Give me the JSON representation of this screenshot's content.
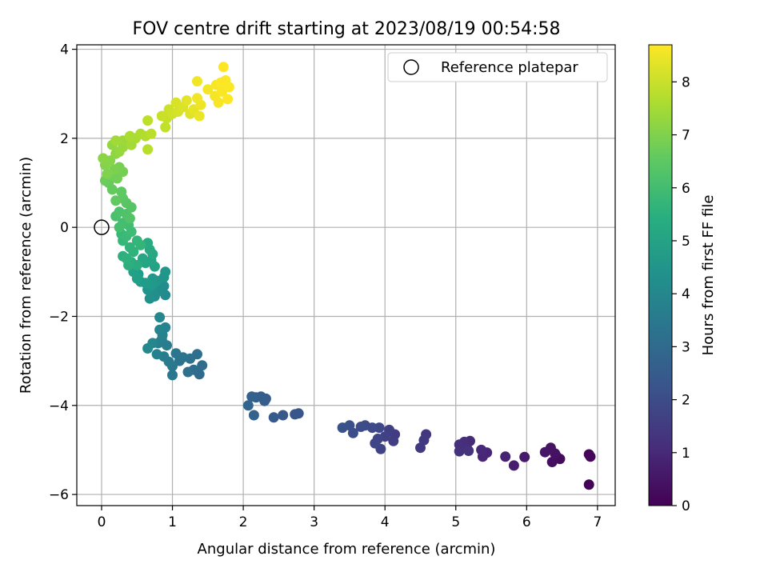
{
  "chart_data": {
    "type": "scatter",
    "title": "FOV centre drift starting at 2023/08/19 00:54:58",
    "xlabel": "Angular distance from reference (arcmin)",
    "ylabel": "Rotation from reference (arcmin)",
    "xlim": [
      -0.35,
      7.25
    ],
    "ylim": [
      -6.25,
      4.1
    ],
    "xticks": [
      0,
      1,
      2,
      3,
      4,
      5,
      6,
      7
    ],
    "yticks": [
      -6,
      -4,
      -2,
      0,
      2,
      4
    ],
    "xtick_labels": [
      "0",
      "1",
      "2",
      "3",
      "4",
      "5",
      "6",
      "7"
    ],
    "ytick_labels": [
      "−6",
      "−4",
      "−2",
      "0",
      "2",
      "4"
    ],
    "grid": true,
    "legend": {
      "placement": "top-right",
      "entries": [
        "Reference platepar"
      ]
    },
    "colorbar": {
      "label": "Hours from first FF file",
      "min": 0,
      "max": 8.7,
      "ticks": [
        0,
        1,
        2,
        3,
        4,
        5,
        6,
        7,
        8
      ],
      "tick_labels": [
        "0",
        "1",
        "2",
        "3",
        "4",
        "5",
        "6",
        "7",
        "8"
      ],
      "colormap": "viridis"
    },
    "reference_point": {
      "x": 0,
      "y": 0,
      "label": "Reference platepar"
    },
    "series": [
      {
        "points": [
          [
            6.88,
            -5.78,
            0.05
          ],
          [
            6.88,
            -5.1,
            0.1
          ],
          [
            6.9,
            -5.15,
            0.15
          ],
          [
            6.47,
            -5.2,
            0.25
          ],
          [
            6.42,
            -5.14,
            0.3
          ],
          [
            6.36,
            -5.27,
            0.35
          ],
          [
            6.4,
            -5.08,
            0.4
          ],
          [
            6.34,
            -4.95,
            0.45
          ],
          [
            6.26,
            -5.05,
            0.5
          ],
          [
            5.97,
            -5.16,
            0.6
          ],
          [
            5.82,
            -5.35,
            0.7
          ],
          [
            5.7,
            -5.15,
            0.8
          ],
          [
            5.44,
            -5.06,
            0.9
          ],
          [
            5.38,
            -5.15,
            0.95
          ],
          [
            5.36,
            -5.0,
            1.0
          ],
          [
            5.2,
            -4.8,
            1.05
          ],
          [
            5.16,
            -4.97,
            1.1
          ],
          [
            5.12,
            -4.82,
            1.15
          ],
          [
            5.05,
            -4.88,
            1.2
          ],
          [
            5.05,
            -5.03,
            1.25
          ],
          [
            5.18,
            -5.02,
            1.3
          ],
          [
            4.58,
            -4.65,
            1.4
          ],
          [
            4.55,
            -4.78,
            1.45
          ],
          [
            4.5,
            -4.95,
            1.5
          ],
          [
            4.14,
            -4.65,
            1.55
          ],
          [
            4.12,
            -4.8,
            1.6
          ],
          [
            4.06,
            -4.55,
            1.65
          ],
          [
            4.0,
            -4.7,
            1.7
          ],
          [
            3.94,
            -4.98,
            1.75
          ],
          [
            3.9,
            -4.75,
            1.8
          ],
          [
            3.86,
            -4.85,
            1.85
          ],
          [
            3.92,
            -4.5,
            1.9
          ],
          [
            3.82,
            -4.5,
            1.95
          ],
          [
            3.72,
            -4.45,
            2.0
          ],
          [
            3.66,
            -4.48,
            2.05
          ],
          [
            3.55,
            -4.62,
            2.1
          ],
          [
            3.5,
            -4.45,
            2.15
          ],
          [
            3.4,
            -4.5,
            2.2
          ],
          [
            2.78,
            -4.18,
            2.3
          ],
          [
            2.73,
            -4.2,
            2.35
          ],
          [
            2.56,
            -4.22,
            2.4
          ],
          [
            2.43,
            -4.27,
            2.45
          ],
          [
            2.32,
            -3.85,
            2.5
          ],
          [
            2.3,
            -3.9,
            2.55
          ],
          [
            2.25,
            -3.8,
            2.6
          ],
          [
            2.18,
            -3.82,
            2.65
          ],
          [
            2.12,
            -3.8,
            2.7
          ],
          [
            2.15,
            -4.22,
            2.75
          ],
          [
            2.07,
            -4.0,
            2.8
          ],
          [
            1.38,
            -3.3,
            3.0
          ],
          [
            1.42,
            -3.1,
            3.05
          ],
          [
            1.3,
            -3.2,
            3.1
          ],
          [
            1.35,
            -2.85,
            3.15
          ],
          [
            1.22,
            -3.25,
            3.2
          ],
          [
            1.25,
            -2.95,
            3.25
          ],
          [
            1.15,
            -2.92,
            3.3
          ],
          [
            1.1,
            -3.0,
            3.35
          ],
          [
            1.05,
            -2.83,
            3.4
          ],
          [
            1.0,
            -3.12,
            3.45
          ],
          [
            1.0,
            -3.32,
            3.5
          ],
          [
            0.95,
            -3.02,
            3.55
          ],
          [
            0.92,
            -2.65,
            3.6
          ],
          [
            0.88,
            -2.9,
            3.65
          ],
          [
            0.85,
            -2.52,
            3.7
          ],
          [
            0.8,
            -2.6,
            3.75
          ],
          [
            0.78,
            -2.85,
            3.8
          ],
          [
            0.9,
            -2.25,
            3.85
          ],
          [
            0.86,
            -2.42,
            3.9
          ],
          [
            0.82,
            -2.3,
            3.95
          ],
          [
            0.82,
            -2.02,
            4.0
          ],
          [
            0.72,
            -2.6,
            4.05
          ],
          [
            0.65,
            -2.72,
            4.1
          ],
          [
            0.9,
            -1.52,
            4.15
          ],
          [
            0.88,
            -1.32,
            4.2
          ],
          [
            0.82,
            -1.42,
            4.25
          ],
          [
            0.75,
            -1.55,
            4.3
          ],
          [
            0.72,
            -1.35,
            4.35
          ],
          [
            0.68,
            -1.6,
            4.4
          ],
          [
            0.65,
            -1.4,
            4.45
          ],
          [
            0.88,
            -1.12,
            4.5
          ],
          [
            0.9,
            -1.0,
            4.55
          ],
          [
            0.78,
            -1.2,
            4.6
          ],
          [
            0.72,
            -1.15,
            4.65
          ],
          [
            0.7,
            -1.3,
            4.7
          ],
          [
            0.62,
            -1.25,
            4.75
          ],
          [
            0.55,
            -1.22,
            4.8
          ],
          [
            0.52,
            -1.05,
            4.85
          ],
          [
            0.5,
            -1.15,
            4.9
          ],
          [
            0.45,
            -1.0,
            4.95
          ],
          [
            0.75,
            -0.88,
            5.0
          ],
          [
            0.7,
            -0.75,
            5.05
          ],
          [
            0.62,
            -0.8,
            5.1
          ],
          [
            0.58,
            -0.7,
            5.15
          ],
          [
            0.72,
            -0.6,
            5.2
          ],
          [
            0.68,
            -0.5,
            5.25
          ],
          [
            0.65,
            -0.35,
            5.3
          ],
          [
            0.5,
            -0.85,
            5.35
          ],
          [
            0.42,
            -0.78,
            5.4
          ],
          [
            0.38,
            -0.85,
            5.45
          ],
          [
            0.3,
            -0.65,
            5.5
          ],
          [
            0.35,
            -0.7,
            5.55
          ],
          [
            0.45,
            -0.55,
            5.6
          ],
          [
            0.4,
            -0.45,
            5.65
          ],
          [
            0.55,
            -0.4,
            5.7
          ],
          [
            0.5,
            -0.3,
            5.75
          ],
          [
            0.3,
            -0.3,
            5.8
          ],
          [
            0.28,
            -0.15,
            5.85
          ],
          [
            0.35,
            -0.2,
            5.9
          ],
          [
            0.42,
            -0.1,
            5.95
          ],
          [
            0.38,
            0.05,
            6.0
          ],
          [
            0.3,
            0.1,
            6.05
          ],
          [
            0.25,
            0.0,
            6.1
          ],
          [
            0.2,
            0.25,
            6.15
          ],
          [
            0.25,
            0.35,
            6.2
          ],
          [
            0.35,
            0.3,
            6.25
          ],
          [
            0.4,
            0.2,
            6.3
          ],
          [
            0.42,
            0.45,
            6.35
          ],
          [
            0.35,
            0.55,
            6.4
          ],
          [
            0.3,
            0.65,
            6.45
          ],
          [
            0.28,
            0.8,
            6.5
          ],
          [
            0.2,
            0.6,
            6.55
          ],
          [
            0.15,
            0.85,
            6.6
          ],
          [
            0.1,
            1.0,
            6.65
          ],
          [
            0.05,
            1.05,
            6.7
          ],
          [
            0.15,
            1.15,
            6.75
          ],
          [
            0.22,
            1.1,
            6.8
          ],
          [
            0.3,
            1.25,
            6.85
          ],
          [
            0.25,
            1.35,
            6.9
          ],
          [
            0.18,
            1.3,
            6.95
          ],
          [
            0.08,
            1.2,
            7.0
          ],
          [
            0.05,
            1.4,
            7.05
          ],
          [
            0.12,
            1.5,
            7.1
          ],
          [
            0.02,
            1.55,
            7.15
          ],
          [
            0.2,
            1.65,
            7.2
          ],
          [
            0.15,
            1.85,
            7.25
          ],
          [
            0.25,
            1.7,
            7.3
          ],
          [
            0.3,
            1.8,
            7.35
          ],
          [
            0.3,
            1.95,
            7.4
          ],
          [
            0.2,
            1.95,
            7.45
          ],
          [
            0.42,
            1.85,
            7.5
          ],
          [
            0.48,
            2.0,
            7.55
          ],
          [
            0.4,
            2.05,
            7.6
          ],
          [
            0.55,
            2.1,
            7.65
          ],
          [
            0.62,
            2.05,
            7.7
          ],
          [
            0.65,
            1.75,
            7.75
          ],
          [
            0.7,
            2.1,
            7.8
          ],
          [
            0.65,
            2.4,
            7.85
          ],
          [
            0.9,
            2.25,
            7.9
          ],
          [
            0.92,
            2.45,
            7.95
          ],
          [
            0.85,
            2.5,
            8.0
          ],
          [
            0.95,
            2.65,
            8.05
          ],
          [
            1.0,
            2.55,
            8.1
          ],
          [
            1.08,
            2.6,
            8.15
          ],
          [
            1.05,
            2.8,
            8.2
          ],
          [
            1.15,
            2.7,
            8.25
          ],
          [
            1.25,
            2.55,
            8.3
          ],
          [
            1.2,
            2.85,
            8.35
          ],
          [
            1.3,
            2.65,
            8.4
          ],
          [
            1.38,
            2.5,
            8.45
          ],
          [
            1.4,
            2.75,
            8.5
          ],
          [
            1.35,
            2.9,
            8.52
          ],
          [
            1.35,
            3.28,
            8.54
          ],
          [
            1.5,
            3.1,
            8.56
          ],
          [
            1.6,
            2.95,
            8.58
          ],
          [
            1.65,
            2.8,
            8.6
          ],
          [
            1.62,
            3.2,
            8.62
          ],
          [
            1.7,
            3.05,
            8.64
          ],
          [
            1.75,
            3.3,
            8.66
          ],
          [
            1.8,
            3.15,
            8.68
          ],
          [
            1.68,
            3.25,
            8.69
          ],
          [
            1.78,
            2.88,
            8.7
          ],
          [
            1.72,
            3.6,
            8.7
          ]
        ]
      }
    ]
  }
}
